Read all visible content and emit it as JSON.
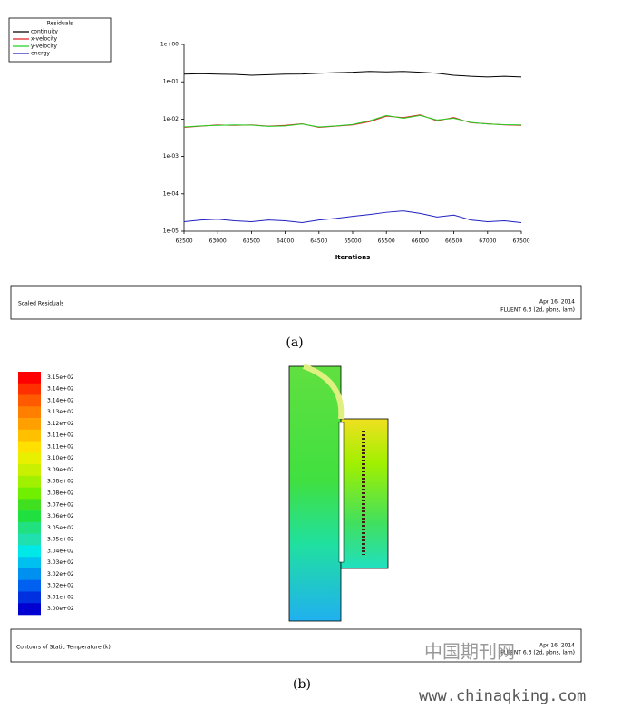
{
  "chart_data": {
    "type": "line",
    "legend_title": "Residuals",
    "xlabel": "Iterations",
    "log_y": true,
    "legend": "top-left",
    "x": [
      62500,
      62750,
      63000,
      63250,
      63500,
      63750,
      64000,
      64250,
      64500,
      64750,
      65000,
      65250,
      65500,
      65750,
      66000,
      66250,
      66500,
      66750,
      67000,
      67250,
      67500
    ],
    "series": [
      {
        "name": "continuity",
        "color": "#000000",
        "values": [
          0.16,
          0.165,
          0.16,
          0.158,
          0.15,
          0.155,
          0.16,
          0.162,
          0.17,
          0.175,
          0.18,
          0.19,
          0.185,
          0.19,
          0.18,
          0.17,
          0.15,
          0.14,
          0.135,
          0.14,
          0.135
        ]
      },
      {
        "name": "x-velocity",
        "color": "#e02020",
        "values": [
          0.006,
          0.0065,
          0.007,
          0.0068,
          0.007,
          0.0065,
          0.0068,
          0.0075,
          0.006,
          0.0065,
          0.007,
          0.0085,
          0.012,
          0.011,
          0.013,
          0.009,
          0.011,
          0.008,
          0.0075,
          0.007,
          0.0068
        ]
      },
      {
        "name": "y-velocity",
        "color": "#20d020",
        "values": [
          0.0062,
          0.0066,
          0.0068,
          0.007,
          0.0069,
          0.0064,
          0.0066,
          0.0074,
          0.0062,
          0.0066,
          0.0072,
          0.009,
          0.0125,
          0.0105,
          0.0125,
          0.0095,
          0.0105,
          0.0082,
          0.0074,
          0.0071,
          0.007
        ]
      },
      {
        "name": "energy",
        "color": "#2020c0",
        "values": [
          1.8e-05,
          2e-05,
          2.1e-05,
          1.9e-05,
          1.8e-05,
          2e-05,
          1.9e-05,
          1.7e-05,
          2e-05,
          2.2e-05,
          2.5e-05,
          2.8e-05,
          3.2e-05,
          3.5e-05,
          3e-05,
          2.4e-05,
          2.7e-05,
          2e-05,
          1.8e-05,
          1.9e-05,
          1.7e-05
        ]
      }
    ],
    "xlim": [
      62500,
      67500
    ],
    "xticks": [
      62500,
      63000,
      63500,
      64000,
      64500,
      65000,
      65500,
      66000,
      66500,
      67000,
      67500
    ],
    "ylim": [
      1e-05,
      1
    ],
    "yticks": [
      {
        "value": 1,
        "label": "1e+00"
      },
      {
        "value": 0.1,
        "label": "1e-01"
      },
      {
        "value": 0.01,
        "label": "1e-02"
      },
      {
        "value": 0.001,
        "label": "1e-03"
      },
      {
        "value": 0.0001,
        "label": "1e-04"
      },
      {
        "value": 1e-05,
        "label": "1e-05"
      }
    ]
  },
  "panel_a": {
    "box_title": "Scaled Residuals",
    "date": "Apr 16, 2014",
    "version": "FLUENT 6.3 (2d, pbns, lam)",
    "caption": "(a)"
  },
  "panel_b": {
    "box_title": "Contours of Static Temperature (k)",
    "date": "Apr 16, 2014",
    "version": "FLUENT 6.3 (2d, pbns, lam)",
    "caption": "(b)",
    "colorbar": {
      "labels": [
        "3.15e+02",
        "3.14e+02",
        "3.14e+02",
        "3.13e+02",
        "3.12e+02",
        "3.11e+02",
        "3.11e+02",
        "3.10e+02",
        "3.09e+02",
        "3.08e+02",
        "3.08e+02",
        "3.07e+02",
        "3.06e+02",
        "3.05e+02",
        "3.05e+02",
        "3.04e+02",
        "3.03e+02",
        "3.02e+02",
        "3.02e+02",
        "3.01e+02",
        "3.00e+02"
      ],
      "colors": [
        "#ff0000",
        "#ff3000",
        "#ff5a00",
        "#ff8000",
        "#ffa000",
        "#ffc000",
        "#ffe000",
        "#e8f000",
        "#c8f000",
        "#a0f000",
        "#70f000",
        "#40e020",
        "#20e040",
        "#20e080",
        "#20e0b0",
        "#00e8e8",
        "#00c0f0",
        "#0090f0",
        "#0060f0",
        "#0030e0",
        "#0000d0"
      ]
    }
  },
  "watermark": {
    "cn": "中国期刊网",
    "url": "www.chinaqking.com"
  }
}
